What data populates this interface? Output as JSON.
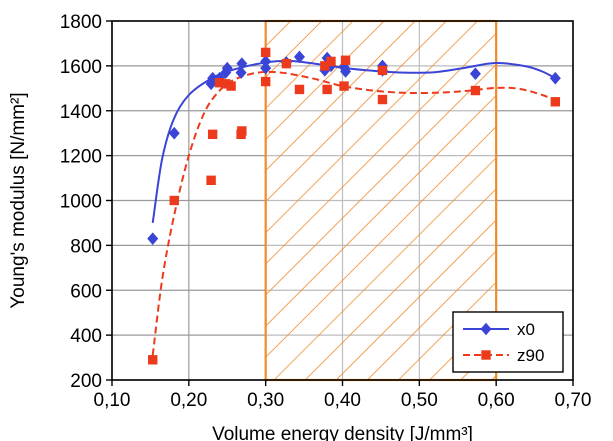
{
  "chart_data": {
    "type": "scatter",
    "title": "",
    "xlabel": "Volume energy density [J/mm³]",
    "ylabel": "Young's modulus [N/mm²]",
    "xlim": [
      0.1,
      0.7
    ],
    "ylim": [
      200,
      1800
    ],
    "x_ticks": [
      0.1,
      0.2,
      0.3,
      0.4,
      0.5,
      0.6,
      0.7
    ],
    "x_tick_labels": [
      "0,10",
      "0,20",
      "0,30",
      "0,40",
      "0,50",
      "0,60",
      "0,70"
    ],
    "y_ticks": [
      200,
      400,
      600,
      800,
      1000,
      1200,
      1400,
      1600,
      1800
    ],
    "y_tick_labels": [
      "200",
      "400",
      "600",
      "800",
      "1000",
      "1200",
      "1400",
      "1600",
      "1800"
    ],
    "grid": true,
    "legend_position": "bottom-right",
    "highlight_region": {
      "x_range": [
        0.3,
        0.6
      ],
      "color": "#f08a2a",
      "pattern": "diagonal-hatch"
    },
    "series": [
      {
        "name": "x0",
        "color": "#3a44d6",
        "marker": "diamond",
        "line_style": "solid",
        "points": [
          [
            0.153,
            830
          ],
          [
            0.181,
            1300
          ],
          [
            0.229,
            1520
          ],
          [
            0.231,
            1545
          ],
          [
            0.24,
            1545
          ],
          [
            0.248,
            1570
          ],
          [
            0.25,
            1590
          ],
          [
            0.268,
            1570
          ],
          [
            0.269,
            1610
          ],
          [
            0.3,
            1590
          ],
          [
            0.3,
            1620
          ],
          [
            0.327,
            1615
          ],
          [
            0.344,
            1640
          ],
          [
            0.377,
            1580
          ],
          [
            0.38,
            1635
          ],
          [
            0.385,
            1600
          ],
          [
            0.402,
            1595
          ],
          [
            0.404,
            1575
          ],
          [
            0.452,
            1580
          ],
          [
            0.452,
            1600
          ],
          [
            0.573,
            1565
          ],
          [
            0.677,
            1545
          ]
        ],
        "trend": [
          [
            0.153,
            900
          ],
          [
            0.165,
            1180
          ],
          [
            0.18,
            1360
          ],
          [
            0.2,
            1470
          ],
          [
            0.23,
            1545
          ],
          [
            0.26,
            1585
          ],
          [
            0.3,
            1615
          ],
          [
            0.33,
            1622
          ],
          [
            0.36,
            1612
          ],
          [
            0.4,
            1592
          ],
          [
            0.44,
            1578
          ],
          [
            0.48,
            1570
          ],
          [
            0.52,
            1572
          ],
          [
            0.56,
            1592
          ],
          [
            0.59,
            1610
          ],
          [
            0.61,
            1612
          ],
          [
            0.64,
            1597
          ],
          [
            0.66,
            1575
          ],
          [
            0.677,
            1545
          ]
        ]
      },
      {
        "name": "z90",
        "color": "#ee3a1c",
        "marker": "square",
        "line_style": "dashed",
        "points": [
          [
            0.153,
            290
          ],
          [
            0.181,
            1000
          ],
          [
            0.229,
            1090
          ],
          [
            0.231,
            1295
          ],
          [
            0.24,
            1525
          ],
          [
            0.248,
            1520
          ],
          [
            0.255,
            1510
          ],
          [
            0.268,
            1295
          ],
          [
            0.269,
            1310
          ],
          [
            0.3,
            1530
          ],
          [
            0.3,
            1660
          ],
          [
            0.327,
            1610
          ],
          [
            0.344,
            1495
          ],
          [
            0.377,
            1600
          ],
          [
            0.38,
            1495
          ],
          [
            0.385,
            1620
          ],
          [
            0.402,
            1510
          ],
          [
            0.404,
            1625
          ],
          [
            0.452,
            1450
          ],
          [
            0.452,
            1580
          ],
          [
            0.573,
            1490
          ],
          [
            0.677,
            1440
          ]
        ],
        "trend": [
          [
            0.153,
            310
          ],
          [
            0.165,
            640
          ],
          [
            0.18,
            920
          ],
          [
            0.2,
            1200
          ],
          [
            0.22,
            1390
          ],
          [
            0.24,
            1490
          ],
          [
            0.26,
            1540
          ],
          [
            0.29,
            1570
          ],
          [
            0.32,
            1570
          ],
          [
            0.36,
            1545
          ],
          [
            0.4,
            1510
          ],
          [
            0.44,
            1490
          ],
          [
            0.48,
            1480
          ],
          [
            0.52,
            1480
          ],
          [
            0.56,
            1488
          ],
          [
            0.6,
            1502
          ],
          [
            0.63,
            1498
          ],
          [
            0.66,
            1470
          ],
          [
            0.677,
            1445
          ]
        ]
      }
    ]
  }
}
